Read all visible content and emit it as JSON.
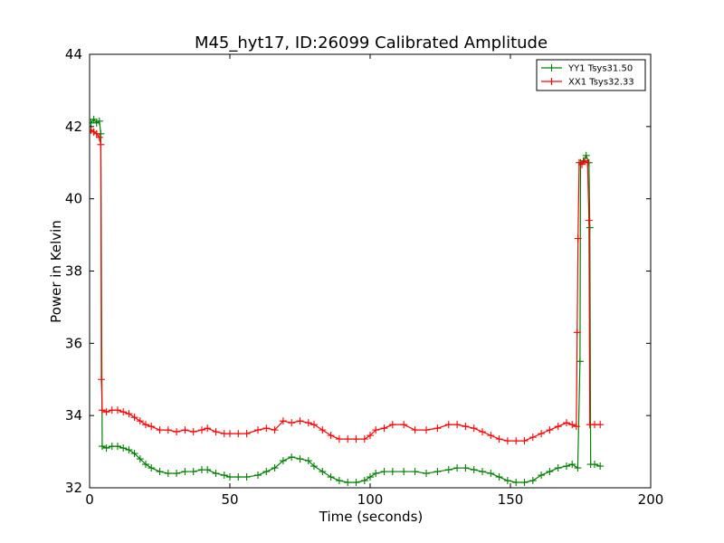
{
  "chart_data": {
    "type": "line",
    "title": "M45_hyt17, ID:26099 Calibrated Amplitude",
    "xlabel": "Time (seconds)",
    "ylabel": "Power in Kelvin",
    "xlim": [
      0,
      200
    ],
    "ylim": [
      32,
      44
    ],
    "xticks": [
      0,
      50,
      100,
      150,
      200
    ],
    "yticks": [
      32,
      34,
      36,
      38,
      40,
      42,
      44
    ],
    "grid": false,
    "legend_position": "top-right",
    "series": [
      {
        "name": "YY1 Tsys31.50",
        "color": "#008000",
        "marker": "+",
        "points": [
          [
            0.5,
            42.1
          ],
          [
            1.5,
            42.2
          ],
          [
            2.5,
            42.1
          ],
          [
            3.5,
            42.15
          ],
          [
            4.0,
            41.8
          ],
          [
            4.5,
            33.15
          ],
          [
            6,
            33.1
          ],
          [
            8,
            33.15
          ],
          [
            10,
            33.15
          ],
          [
            12,
            33.1
          ],
          [
            14,
            33.05
          ],
          [
            16,
            32.95
          ],
          [
            18,
            32.8
          ],
          [
            20,
            32.65
          ],
          [
            22,
            32.55
          ],
          [
            25,
            32.45
          ],
          [
            28,
            32.4
          ],
          [
            31,
            32.4
          ],
          [
            34,
            32.45
          ],
          [
            37,
            32.45
          ],
          [
            40,
            32.5
          ],
          [
            42,
            32.5
          ],
          [
            45,
            32.4
          ],
          [
            48,
            32.35
          ],
          [
            50,
            32.3
          ],
          [
            53,
            32.3
          ],
          [
            56,
            32.3
          ],
          [
            60,
            32.35
          ],
          [
            63,
            32.45
          ],
          [
            66,
            32.55
          ],
          [
            69,
            32.75
          ],
          [
            72,
            32.85
          ],
          [
            75,
            32.8
          ],
          [
            78,
            32.75
          ],
          [
            80,
            32.6
          ],
          [
            83,
            32.45
          ],
          [
            86,
            32.3
          ],
          [
            89,
            32.2
          ],
          [
            92,
            32.15
          ],
          [
            95,
            32.15
          ],
          [
            98,
            32.2
          ],
          [
            100,
            32.3
          ],
          [
            102,
            32.4
          ],
          [
            105,
            32.45
          ],
          [
            108,
            32.45
          ],
          [
            112,
            32.45
          ],
          [
            116,
            32.45
          ],
          [
            120,
            32.4
          ],
          [
            124,
            32.45
          ],
          [
            128,
            32.5
          ],
          [
            131,
            32.55
          ],
          [
            134,
            32.55
          ],
          [
            137,
            32.5
          ],
          [
            140,
            32.45
          ],
          [
            143,
            32.4
          ],
          [
            146,
            32.3
          ],
          [
            149,
            32.2
          ],
          [
            152,
            32.15
          ],
          [
            155,
            32.15
          ],
          [
            158,
            32.2
          ],
          [
            161,
            32.35
          ],
          [
            164,
            32.45
          ],
          [
            167,
            32.55
          ],
          [
            170,
            32.6
          ],
          [
            172,
            32.65
          ],
          [
            174,
            32.55
          ],
          [
            174.8,
            35.5
          ],
          [
            175,
            41.0
          ],
          [
            176,
            41.05
          ],
          [
            177,
            41.2
          ],
          [
            178,
            41.0
          ],
          [
            178.3,
            39.2
          ],
          [
            178.6,
            32.65
          ],
          [
            180,
            32.65
          ],
          [
            182,
            32.6
          ]
        ]
      },
      {
        "name": "XX1 Tsys32.33",
        "color": "#ff0000",
        "marker": "+",
        "points": [
          [
            0.5,
            41.9
          ],
          [
            1.5,
            41.85
          ],
          [
            2.5,
            41.8
          ],
          [
            3.5,
            41.7
          ],
          [
            4.0,
            41.5
          ],
          [
            4.2,
            35.0
          ],
          [
            4.5,
            34.15
          ],
          [
            6,
            34.1
          ],
          [
            8,
            34.15
          ],
          [
            10,
            34.15
          ],
          [
            12,
            34.1
          ],
          [
            14,
            34.05
          ],
          [
            16,
            33.95
          ],
          [
            18,
            33.85
          ],
          [
            20,
            33.75
          ],
          [
            22,
            33.7
          ],
          [
            25,
            33.6
          ],
          [
            28,
            33.6
          ],
          [
            31,
            33.55
          ],
          [
            34,
            33.6
          ],
          [
            37,
            33.55
          ],
          [
            40,
            33.6
          ],
          [
            42,
            33.65
          ],
          [
            45,
            33.55
          ],
          [
            48,
            33.5
          ],
          [
            50,
            33.5
          ],
          [
            53,
            33.5
          ],
          [
            56,
            33.5
          ],
          [
            60,
            33.6
          ],
          [
            63,
            33.65
          ],
          [
            66,
            33.6
          ],
          [
            69,
            33.85
          ],
          [
            72,
            33.8
          ],
          [
            75,
            33.85
          ],
          [
            78,
            33.8
          ],
          [
            80,
            33.75
          ],
          [
            83,
            33.6
          ],
          [
            86,
            33.45
          ],
          [
            89,
            33.35
          ],
          [
            92,
            33.35
          ],
          [
            95,
            33.35
          ],
          [
            98,
            33.35
          ],
          [
            100,
            33.45
          ],
          [
            102,
            33.6
          ],
          [
            105,
            33.65
          ],
          [
            108,
            33.75
          ],
          [
            112,
            33.75
          ],
          [
            116,
            33.6
          ],
          [
            120,
            33.6
          ],
          [
            124,
            33.65
          ],
          [
            128,
            33.75
          ],
          [
            131,
            33.75
          ],
          [
            134,
            33.7
          ],
          [
            137,
            33.65
          ],
          [
            140,
            33.55
          ],
          [
            143,
            33.45
          ],
          [
            146,
            33.35
          ],
          [
            149,
            33.3
          ],
          [
            152,
            33.3
          ],
          [
            155,
            33.3
          ],
          [
            158,
            33.4
          ],
          [
            161,
            33.5
          ],
          [
            164,
            33.6
          ],
          [
            167,
            33.7
          ],
          [
            170,
            33.8
          ],
          [
            172,
            33.75
          ],
          [
            173.5,
            33.7
          ],
          [
            173.8,
            36.3
          ],
          [
            174.1,
            38.9
          ],
          [
            174.5,
            41.0
          ],
          [
            175.5,
            40.95
          ],
          [
            176.5,
            41.05
          ],
          [
            177.5,
            41.0
          ],
          [
            178,
            39.4
          ],
          [
            178.3,
            33.75
          ],
          [
            180,
            33.75
          ],
          [
            182,
            33.75
          ]
        ]
      }
    ]
  }
}
